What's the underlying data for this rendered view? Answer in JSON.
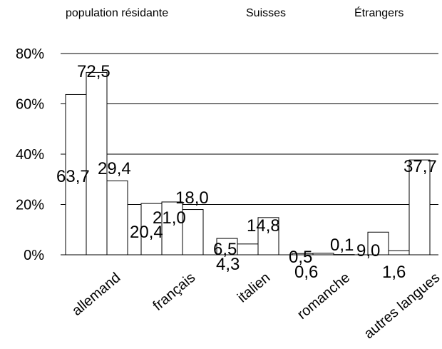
{
  "chart_data": {
    "type": "bar",
    "categories": [
      "allemand",
      "français",
      "italien",
      "romanche",
      "autres langues"
    ],
    "series": [
      {
        "name": "population résidante",
        "values": [
          63.7,
          20.4,
          6.5,
          0.5,
          9.0
        ]
      },
      {
        "name": "Suisses",
        "values": [
          72.5,
          21.0,
          4.3,
          0.6,
          1.6
        ]
      },
      {
        "name": "Étrangers",
        "values": [
          29.4,
          18.0,
          14.8,
          0.1,
          37.7
        ]
      }
    ],
    "data_labels": [
      [
        "63,7",
        "20,4",
        "6,5",
        "0,5",
        "9,0"
      ],
      [
        "72,5",
        "21,0",
        "4,3",
        "0,6",
        "1,6"
      ],
      [
        "29,4",
        "18,0",
        "14,8",
        "0,1",
        "37,7"
      ]
    ],
    "ylim": [
      0,
      80
    ],
    "yticks": [
      0,
      20,
      40,
      60,
      80
    ],
    "ytick_labels": [
      "0%",
      "20%",
      "40%",
      "60%",
      "80%"
    ],
    "grid": true,
    "legend_position": "top",
    "colors": {
      "bar_fill": "#ffffff",
      "bar_stroke": "#000000",
      "grid": "#000000"
    }
  }
}
